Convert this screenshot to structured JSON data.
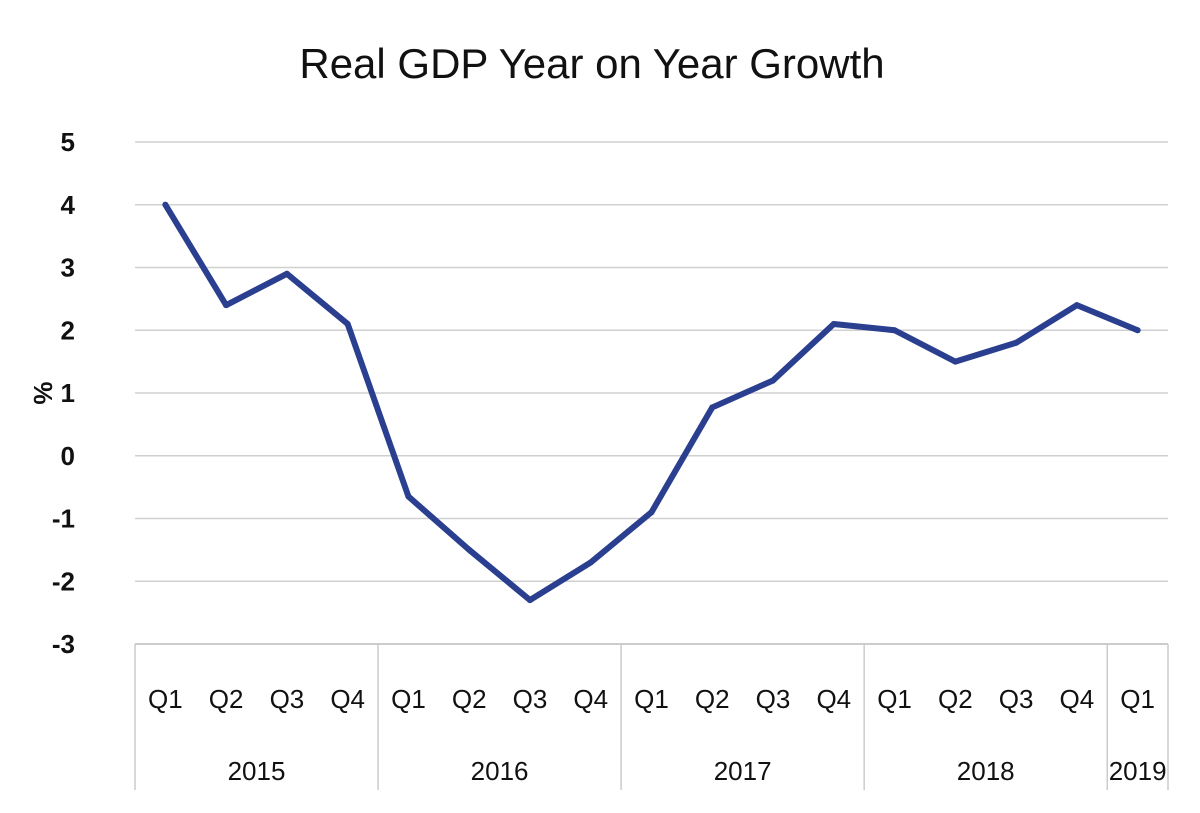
{
  "chart_data": {
    "type": "line",
    "title": "Real GDP Year on Year Growth",
    "xlabel": "",
    "ylabel": "%",
    "ylim": [
      -3,
      5
    ],
    "yticks": [
      "5",
      "4",
      "3",
      "2",
      "1",
      "0",
      "-1",
      "-2",
      "-3"
    ],
    "grid": true,
    "legend": "none",
    "categories": [
      "Q1",
      "Q2",
      "Q3",
      "Q4",
      "Q1",
      "Q2",
      "Q3",
      "Q4",
      "Q1",
      "Q2",
      "Q3",
      "Q4",
      "Q1",
      "Q2",
      "Q3",
      "Q4",
      "Q1"
    ],
    "groups": [
      {
        "label": "2015",
        "count": 4
      },
      {
        "label": "2016",
        "count": 4
      },
      {
        "label": "2017",
        "count": 4
      },
      {
        "label": "2018",
        "count": 4
      },
      {
        "label": "2019",
        "count": 1
      }
    ],
    "series": [
      {
        "values": [
          4.0,
          2.4,
          2.9,
          2.1,
          -0.65,
          -1.5,
          -2.3,
          -1.7,
          -0.9,
          0.77,
          1.2,
          2.1,
          2.0,
          1.5,
          1.8,
          2.4,
          2.0
        ],
        "color": "#2a3f8f"
      }
    ],
    "colors": {
      "line": "#2a3f8f",
      "grid": "#d0d0d0"
    }
  }
}
